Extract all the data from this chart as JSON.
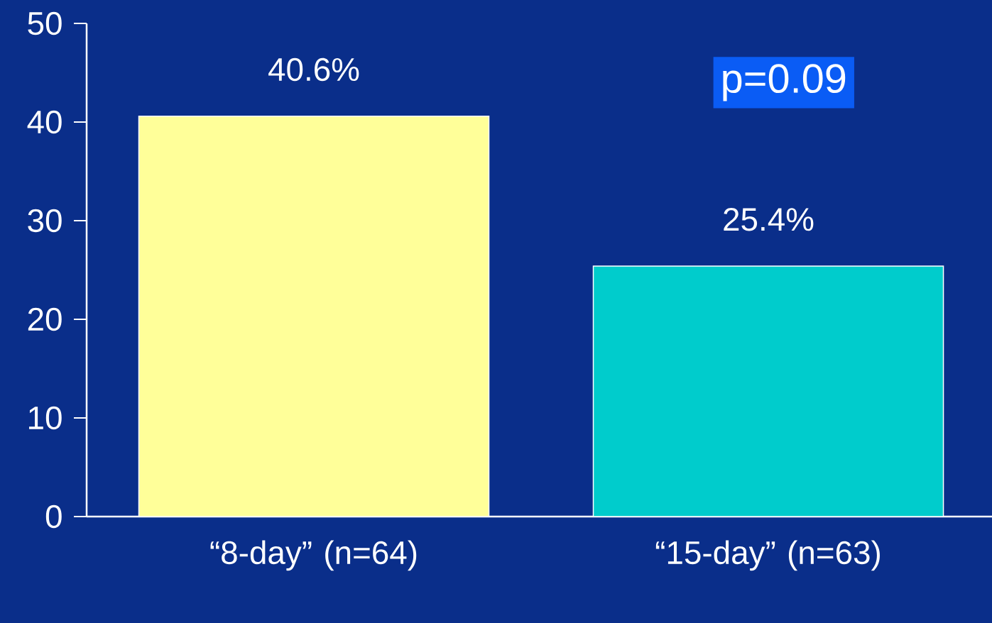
{
  "chart_data": {
    "type": "bar",
    "categories": [
      "“8-day” (n=64)",
      "“15-day” (n=63)"
    ],
    "values": [
      40.6,
      25.4
    ],
    "colors": [
      "#ffff99",
      "#00cccc"
    ],
    "value_labels": [
      "40.6%",
      "25.4%"
    ],
    "ylim": [
      0,
      50
    ],
    "yticks": [
      0,
      10,
      20,
      30,
      40,
      50
    ],
    "annotations": [
      "p=0.09"
    ]
  }
}
